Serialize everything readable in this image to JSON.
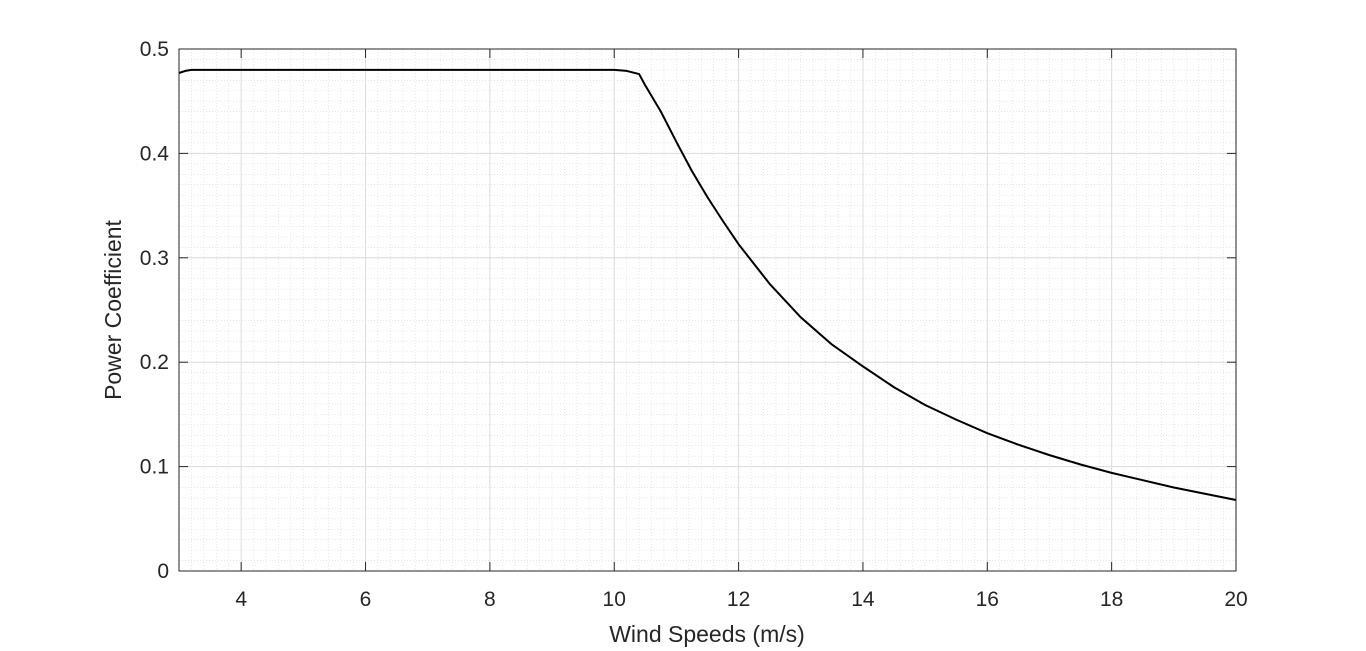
{
  "chart_data": {
    "type": "line",
    "title": "",
    "xlabel": "Wind Speeds (m/s)",
    "ylabel": "Power Coefficient",
    "xlim": [
      3,
      20
    ],
    "ylim": [
      0,
      0.5
    ],
    "x_ticks": [
      4,
      6,
      8,
      10,
      12,
      14,
      16,
      18,
      20
    ],
    "y_ticks": [
      0,
      0.1,
      0.2,
      0.3,
      0.4,
      0.5
    ],
    "x_tick_labels": [
      "4",
      "6",
      "8",
      "10",
      "12",
      "14",
      "16",
      "18",
      "20"
    ],
    "y_tick_labels": [
      "0",
      "0.1",
      "0.2",
      "0.3",
      "0.4",
      "0.5"
    ],
    "grid": true,
    "minor_grid": true,
    "legend": "none",
    "series": [
      {
        "color": "#000000",
        "x": [
          3.0,
          3.1,
          3.2,
          4,
          5,
          6,
          7,
          8,
          9,
          9.6,
          10.0,
          10.2,
          10.4,
          10.5,
          10.75,
          11.0,
          11.25,
          11.5,
          11.75,
          12.0,
          12.5,
          13.0,
          13.5,
          14.0,
          14.5,
          15.0,
          15.5,
          16.0,
          16.5,
          17.0,
          17.5,
          18.0,
          18.5,
          19.0,
          19.5,
          20.0
        ],
        "y": [
          0.477,
          0.479,
          0.48,
          0.48,
          0.48,
          0.48,
          0.48,
          0.48,
          0.48,
          0.48,
          0.48,
          0.479,
          0.476,
          0.465,
          0.44,
          0.411,
          0.383,
          0.358,
          0.335,
          0.313,
          0.275,
          0.243,
          0.217,
          0.196,
          0.176,
          0.159,
          0.145,
          0.132,
          0.121,
          0.111,
          0.102,
          0.094,
          0.087,
          0.08,
          0.074,
          0.068
        ]
      }
    ]
  }
}
